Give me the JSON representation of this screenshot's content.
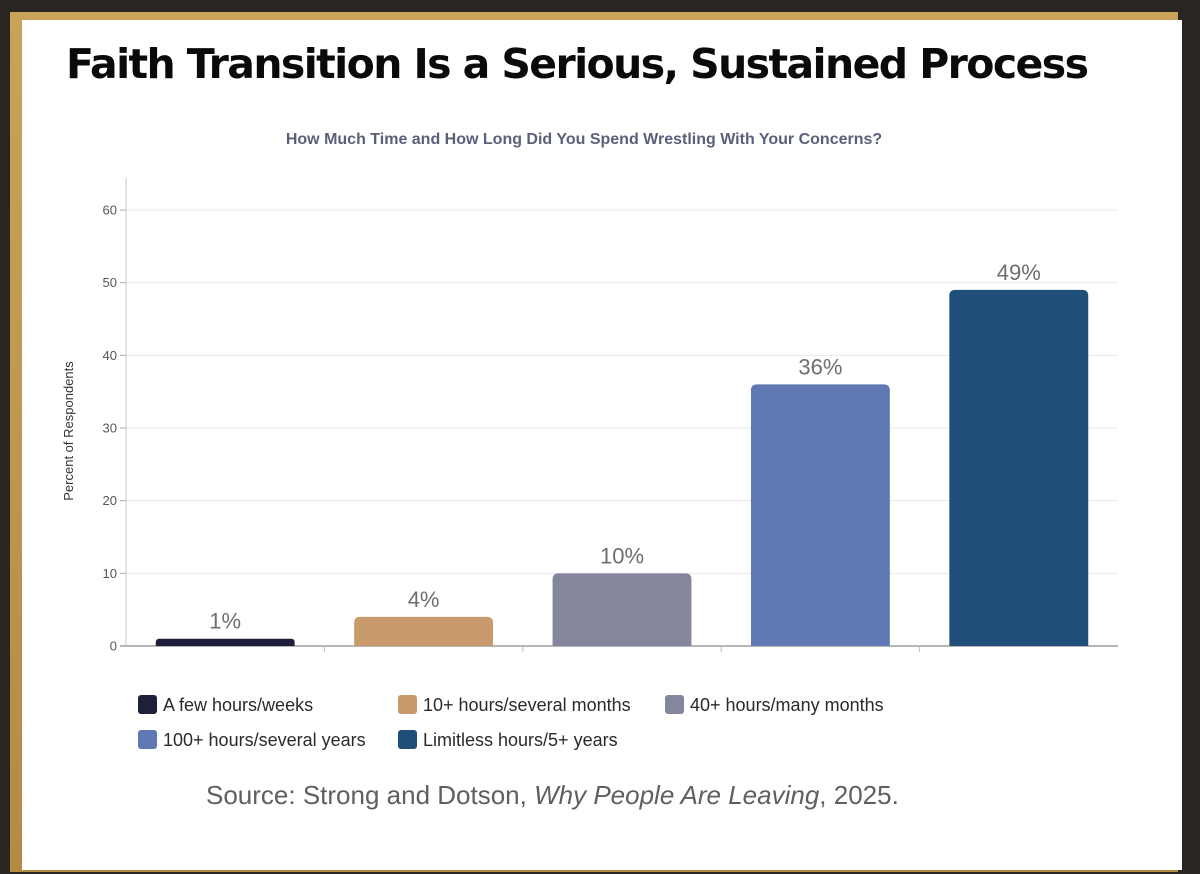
{
  "slide": {
    "title": "Faith Transition Is a Serious, Sustained Process",
    "source_prefix": "Source:  Strong and Dotson, ",
    "source_title": "Why People Are Leaving",
    "source_suffix": ", 2025."
  },
  "chart_data": {
    "type": "bar",
    "title": "How Much Time and How Long Did You Spend Wrestling With Your Concerns?",
    "xlabel": "",
    "ylabel": "Percent of Respondents",
    "ylim": [
      0,
      60
    ],
    "yticks": [
      0,
      10,
      20,
      30,
      40,
      50,
      60
    ],
    "grid": true,
    "legend_position": "bottom",
    "categories": [
      "A few hours/weeks",
      "10+ hours/several months",
      "40+ hours/many months",
      "100+ hours/several years",
      "Limitless hours/5+ years"
    ],
    "values": [
      1,
      4,
      10,
      36,
      49
    ],
    "data_labels": [
      "1%",
      "4%",
      "10%",
      "36%",
      "49%"
    ],
    "colors": [
      "#1e1f3b",
      "#c99a6c",
      "#84879c",
      "#6079b4",
      "#1f4f79"
    ]
  }
}
